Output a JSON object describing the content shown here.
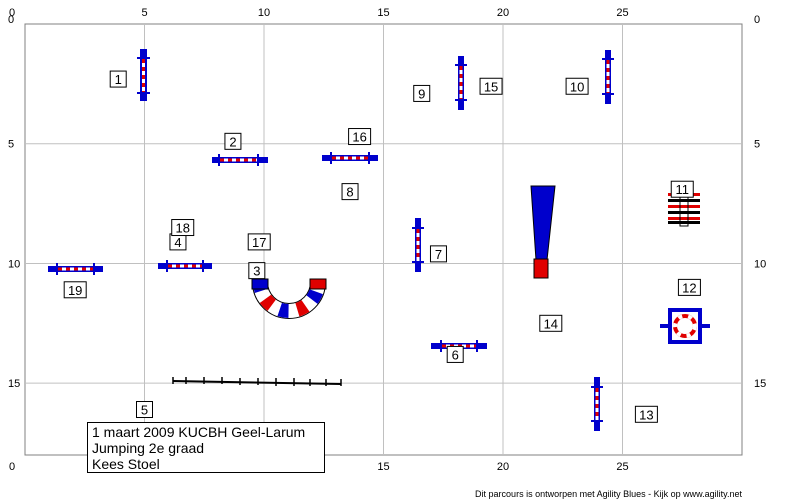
{
  "grid": {
    "x_ticks": [
      "0",
      "5",
      "10",
      "15",
      "20",
      "25"
    ],
    "y_ticks": [
      "0",
      "5",
      "10",
      "15"
    ],
    "x_range": [
      0,
      30
    ],
    "y_range": [
      0,
      18
    ],
    "grid_every": 5
  },
  "colors": {
    "red": "#e00000",
    "blue": "#0000cc",
    "grid": "#c0c0c0"
  },
  "labels": [
    {
      "text": "1",
      "x": 3.9,
      "y": 2.3
    },
    {
      "text": "2",
      "x": 8.7,
      "y": 4.9
    },
    {
      "text": "3",
      "x": 9.7,
      "y": 10.3
    },
    {
      "text": "4",
      "x": 6.4,
      "y": 9.1
    },
    {
      "text": "5",
      "x": 5.0,
      "y": 16.1
    },
    {
      "text": "6",
      "x": 18.0,
      "y": 13.8
    },
    {
      "text": "7",
      "x": 17.3,
      "y": 9.6
    },
    {
      "text": "8",
      "x": 13.6,
      "y": 7.0
    },
    {
      "text": "9",
      "x": 16.6,
      "y": 2.9
    },
    {
      "text": "10",
      "x": 23.1,
      "y": 2.6
    },
    {
      "text": "11",
      "x": 27.5,
      "y": 6.9
    },
    {
      "text": "12",
      "x": 27.8,
      "y": 11.0
    },
    {
      "text": "13",
      "x": 26.0,
      "y": 16.3
    },
    {
      "text": "14",
      "x": 22.0,
      "y": 12.5
    },
    {
      "text": "15",
      "x": 19.5,
      "y": 2.6
    },
    {
      "text": "16",
      "x": 14.0,
      "y": 4.7
    },
    {
      "text": "17",
      "x": 9.8,
      "y": 9.1
    },
    {
      "text": "18",
      "x": 6.6,
      "y": 8.5
    },
    {
      "text": "19",
      "x": 2.1,
      "y": 11.1
    }
  ],
  "info": {
    "line1": "1 maart 2009 KUCBH Geel-Larum",
    "line2": "Jumping 2e graad",
    "line3": "Kees Stoel"
  },
  "footer": "Dit parcours is ontworpen met Agility Blues - Kijk op www.agility.net"
}
